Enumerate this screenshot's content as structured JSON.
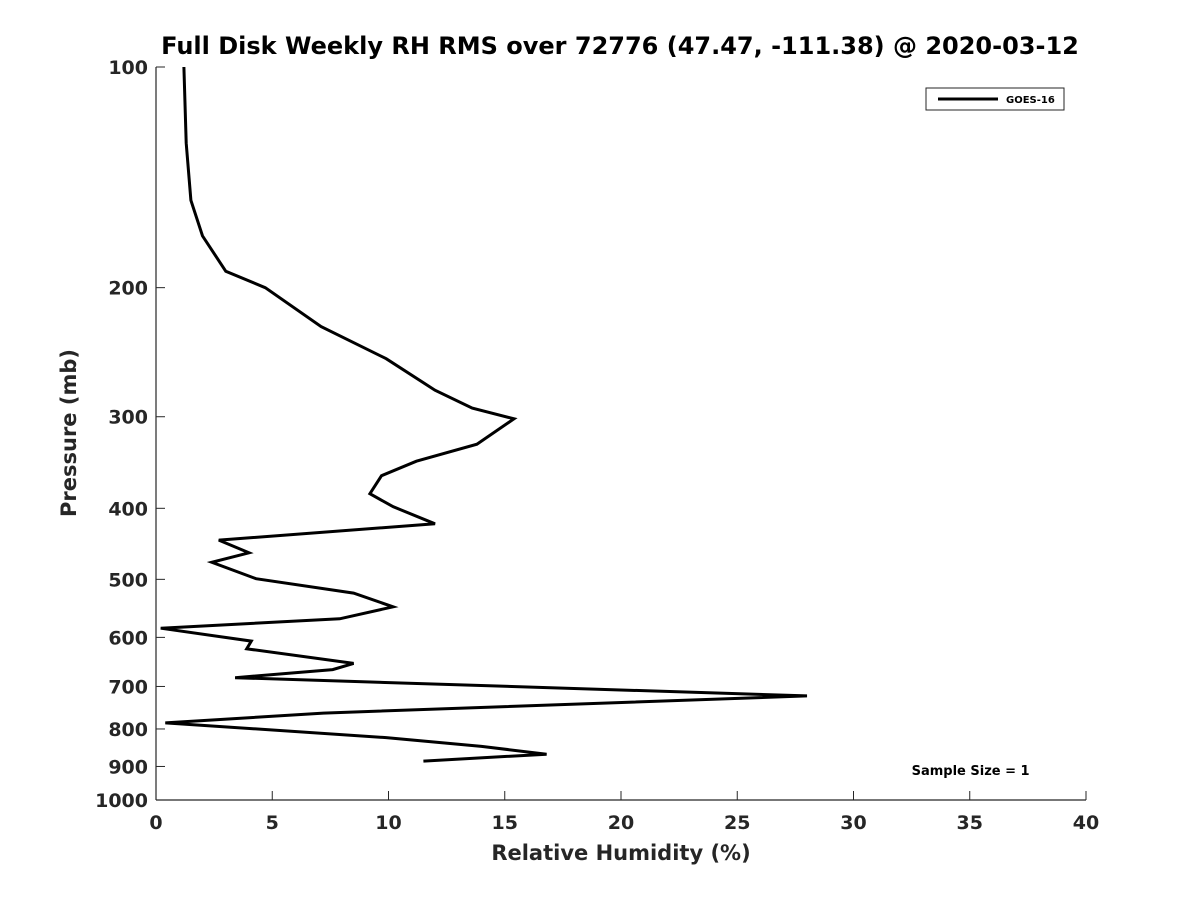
{
  "chart_data": {
    "type": "line",
    "title": "Full Disk Weekly RH RMS over 72776 (47.47, -111.38) @ 2020-03-12",
    "xlabel": "Relative Humidity (%)",
    "ylabel": "Pressure (mb)",
    "xlim": [
      0,
      40
    ],
    "ylim": [
      100,
      1000
    ],
    "y_scale": "log",
    "y_reversed": true,
    "xticks": [
      0,
      5,
      10,
      15,
      20,
      25,
      30,
      35,
      40
    ],
    "yticks": [
      100,
      200,
      300,
      400,
      500,
      600,
      700,
      800,
      900,
      1000
    ],
    "grid": false,
    "legend_position": "top-right",
    "line_color": "#000000",
    "series": [
      {
        "name": "GOES-16",
        "points": [
          {
            "x": 1.2,
            "y": 100
          },
          {
            "x": 1.3,
            "y": 127
          },
          {
            "x": 1.5,
            "y": 152
          },
          {
            "x": 2.0,
            "y": 170
          },
          {
            "x": 3.0,
            "y": 190
          },
          {
            "x": 4.7,
            "y": 200
          },
          {
            "x": 7.1,
            "y": 226
          },
          {
            "x": 9.9,
            "y": 250
          },
          {
            "x": 12.0,
            "y": 276
          },
          {
            "x": 13.6,
            "y": 292
          },
          {
            "x": 15.4,
            "y": 302
          },
          {
            "x": 13.8,
            "y": 327
          },
          {
            "x": 11.2,
            "y": 345
          },
          {
            "x": 9.7,
            "y": 361
          },
          {
            "x": 9.2,
            "y": 382
          },
          {
            "x": 10.2,
            "y": 398
          },
          {
            "x": 12.0,
            "y": 420
          },
          {
            "x": 2.7,
            "y": 442
          },
          {
            "x": 4.0,
            "y": 460
          },
          {
            "x": 2.4,
            "y": 474
          },
          {
            "x": 4.3,
            "y": 499
          },
          {
            "x": 8.5,
            "y": 522
          },
          {
            "x": 10.2,
            "y": 545
          },
          {
            "x": 7.9,
            "y": 566
          },
          {
            "x": 0.2,
            "y": 583
          },
          {
            "x": 4.1,
            "y": 607
          },
          {
            "x": 3.9,
            "y": 622
          },
          {
            "x": 8.5,
            "y": 651
          },
          {
            "x": 7.6,
            "y": 664
          },
          {
            "x": 3.4,
            "y": 681
          },
          {
            "x": 28.0,
            "y": 721
          },
          {
            "x": 7.2,
            "y": 761
          },
          {
            "x": 0.4,
            "y": 785
          },
          {
            "x": 9.9,
            "y": 822
          },
          {
            "x": 14.0,
            "y": 845
          },
          {
            "x": 16.8,
            "y": 866
          },
          {
            "x": 11.5,
            "y": 885
          }
        ]
      }
    ],
    "annotations": [
      {
        "text": "Sample Size = 1",
        "x": 32.5,
        "y": 910
      }
    ]
  }
}
